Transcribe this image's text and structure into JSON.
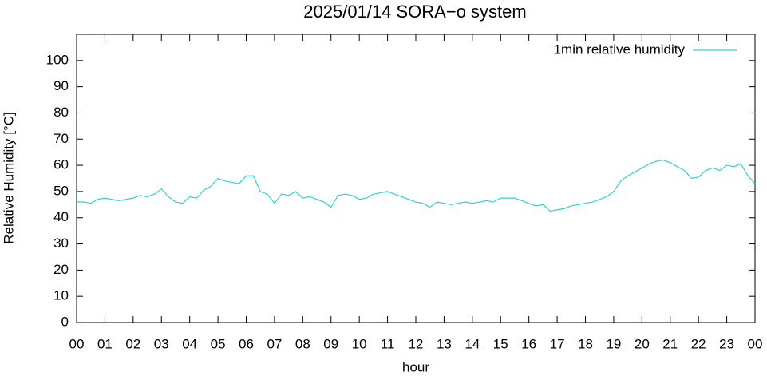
{
  "chart_data": {
    "type": "line",
    "title": "2025/01/14 SORA−o system",
    "xlabel": "hour",
    "ylabel": "Relative Humidity [°C]",
    "xlim": [
      0,
      24
    ],
    "ylim": [
      0,
      110
    ],
    "xticks": [
      {
        "value": 0,
        "label": "00"
      },
      {
        "value": 1,
        "label": "01"
      },
      {
        "value": 2,
        "label": "02"
      },
      {
        "value": 3,
        "label": "03"
      },
      {
        "value": 4,
        "label": "04"
      },
      {
        "value": 5,
        "label": "05"
      },
      {
        "value": 6,
        "label": "06"
      },
      {
        "value": 7,
        "label": "07"
      },
      {
        "value": 8,
        "label": "08"
      },
      {
        "value": 9,
        "label": "09"
      },
      {
        "value": 10,
        "label": "10"
      },
      {
        "value": 11,
        "label": "11"
      },
      {
        "value": 12,
        "label": "12"
      },
      {
        "value": 13,
        "label": "13"
      },
      {
        "value": 14,
        "label": "14"
      },
      {
        "value": 15,
        "label": "15"
      },
      {
        "value": 16,
        "label": "16"
      },
      {
        "value": 17,
        "label": "17"
      },
      {
        "value": 18,
        "label": "18"
      },
      {
        "value": 19,
        "label": "19"
      },
      {
        "value": 20,
        "label": "20"
      },
      {
        "value": 21,
        "label": "21"
      },
      {
        "value": 22,
        "label": "22"
      },
      {
        "value": 23,
        "label": "23"
      },
      {
        "value": 24,
        "label": "00"
      }
    ],
    "yticks": [
      0,
      10,
      20,
      30,
      40,
      50,
      60,
      70,
      80,
      90,
      100
    ],
    "grid": false,
    "legend": "top right",
    "x": [
      0,
      0.25,
      0.5,
      0.75,
      1,
      1.25,
      1.5,
      1.75,
      2,
      2.25,
      2.5,
      2.75,
      3,
      3.25,
      3.5,
      3.75,
      4,
      4.25,
      4.5,
      4.75,
      5,
      5.25,
      5.5,
      5.75,
      6,
      6.25,
      6.5,
      6.75,
      7,
      7.25,
      7.5,
      7.75,
      8,
      8.25,
      8.5,
      8.75,
      9,
      9.25,
      9.5,
      9.75,
      10,
      10.25,
      10.5,
      10.75,
      11,
      11.25,
      11.5,
      11.75,
      12,
      12.25,
      12.5,
      12.75,
      13,
      13.25,
      13.5,
      13.75,
      14,
      14.25,
      14.5,
      14.75,
      15,
      15.25,
      15.5,
      15.75,
      16,
      16.25,
      16.5,
      16.75,
      17,
      17.25,
      17.5,
      17.75,
      18,
      18.25,
      18.5,
      18.75,
      19,
      19.25,
      19.5,
      19.75,
      20,
      20.25,
      20.5,
      20.75,
      21,
      21.25,
      21.5,
      21.75,
      22,
      22.25,
      22.5,
      22.75,
      23,
      23.25,
      23.5,
      23.75,
      24
    ],
    "series": [
      {
        "name": "1min relative humidity",
        "color": "#2ed3d3",
        "values": [
          46,
          46,
          45.5,
          47,
          47.5,
          47,
          46.5,
          47,
          47.5,
          48.5,
          48,
          49,
          51,
          48,
          46,
          45.5,
          48,
          47.5,
          50.5,
          52,
          55,
          54,
          53.5,
          53,
          56,
          56,
          50,
          49,
          45.5,
          49,
          48.5,
          50,
          47.5,
          48,
          47,
          46,
          44,
          48.5,
          49,
          48.5,
          47,
          47.5,
          49,
          49.5,
          50,
          49,
          48,
          47,
          46,
          45.5,
          44,
          46,
          45.5,
          45,
          45.5,
          46,
          45.5,
          46,
          46.5,
          46,
          47.5,
          47.5,
          47.5,
          46.5,
          45.5,
          44.5,
          45,
          42.5,
          43,
          43.5,
          44.5,
          45,
          45.5,
          46,
          47,
          48,
          50,
          54,
          56,
          57.5,
          59,
          60.5,
          61.5,
          62,
          61,
          59.5,
          58,
          55,
          55.5,
          58,
          59,
          58,
          60,
          59.5,
          60.5,
          56,
          53
        ]
      }
    ]
  }
}
